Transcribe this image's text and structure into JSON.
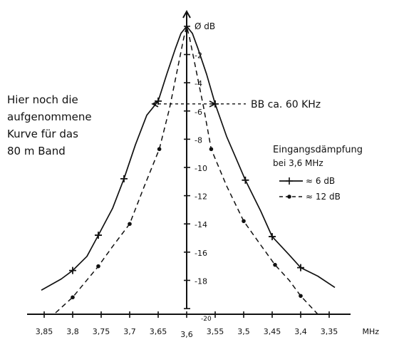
{
  "chart_data": {
    "type": "line",
    "x_unit": "MHz",
    "y_unit": "dB",
    "x_ticks": [
      {
        "value": 3.85,
        "label": "3,85"
      },
      {
        "value": 3.8,
        "label": "3,8"
      },
      {
        "value": 3.75,
        "label": "3,75"
      },
      {
        "value": 3.7,
        "label": "3,7"
      },
      {
        "value": 3.65,
        "label": "3,65"
      },
      {
        "value": 3.6,
        "label": "3,6"
      },
      {
        "value": 3.55,
        "label": "3,55"
      },
      {
        "value": 3.5,
        "label": "3,5"
      },
      {
        "value": 3.45,
        "label": "3,45"
      },
      {
        "value": 3.4,
        "label": "3,4"
      },
      {
        "value": 3.35,
        "label": "3,35"
      }
    ],
    "y_ticks": [
      {
        "value": 0,
        "label": "0"
      },
      {
        "value": -2,
        "label": "-2"
      },
      {
        "value": -4,
        "label": "-4"
      },
      {
        "value": -6,
        "label": "-6"
      },
      {
        "value": -8,
        "label": "-8"
      },
      {
        "value": -10,
        "label": "-10"
      },
      {
        "value": -12,
        "label": "-12"
      },
      {
        "value": -14,
        "label": "-14"
      },
      {
        "value": -16,
        "label": "-16"
      },
      {
        "value": -18,
        "label": "-18"
      },
      {
        "value": -20,
        "label": "-20"
      }
    ],
    "y_zero_label": "Ø dB",
    "x_reversed": true,
    "xlim": [
      3.87,
      3.33
    ],
    "ylim": [
      -20.5,
      0.5
    ],
    "series": [
      {
        "name": "≈ 6 dB",
        "style": "solid",
        "marker": "cross",
        "x": [
          3.65,
          3.71,
          3.755,
          3.8,
          3.55,
          3.497,
          3.45,
          3.4
        ],
        "y": [
          -5.3,
          -10.8,
          -14.8,
          -17.3,
          -5.5,
          -10.9,
          -14.9,
          -17.1
        ]
      },
      {
        "name": "≈ 12 dB",
        "style": "dashed",
        "marker": "circle",
        "x": [
          3.648,
          3.7,
          3.755,
          3.8,
          3.557,
          3.5,
          3.445,
          3.4
        ],
        "y": [
          -8.7,
          -14.0,
          -17.0,
          -19.2,
          -8.7,
          -13.8,
          -16.9,
          -19.1
        ]
      }
    ],
    "curve_shape": {
      "solid": [
        [
          3.855,
          -18.7
        ],
        [
          3.82,
          -17.9
        ],
        [
          3.8,
          -17.3
        ],
        [
          3.775,
          -16.3
        ],
        [
          3.755,
          -14.8
        ],
        [
          3.73,
          -12.9
        ],
        [
          3.71,
          -10.8
        ],
        [
          3.69,
          -8.4
        ],
        [
          3.67,
          -6.3
        ],
        [
          3.65,
          -5.3
        ],
        [
          3.635,
          -3.4
        ],
        [
          3.62,
          -1.6
        ],
        [
          3.61,
          -0.5
        ],
        [
          3.6,
          0
        ],
        [
          3.59,
          -0.5
        ],
        [
          3.58,
          -1.6
        ],
        [
          3.565,
          -3.4
        ],
        [
          3.55,
          -5.5
        ],
        [
          3.53,
          -7.8
        ],
        [
          3.515,
          -9.2
        ],
        [
          3.497,
          -10.9
        ],
        [
          3.47,
          -13.1
        ],
        [
          3.45,
          -14.9
        ],
        [
          3.42,
          -16.2
        ],
        [
          3.4,
          -17.1
        ],
        [
          3.37,
          -17.7
        ],
        [
          3.34,
          -18.5
        ]
      ],
      "dashed": [
        [
          3.83,
          -20.3
        ],
        [
          3.8,
          -19.2
        ],
        [
          3.755,
          -17.0
        ],
        [
          3.73,
          -15.6
        ],
        [
          3.7,
          -14.0
        ],
        [
          3.675,
          -11.4
        ],
        [
          3.648,
          -8.7
        ],
        [
          3.63,
          -5.8
        ],
        [
          3.615,
          -2.8
        ],
        [
          3.605,
          -0.8
        ],
        [
          3.6,
          0
        ],
        [
          3.595,
          -0.8
        ],
        [
          3.585,
          -2.8
        ],
        [
          3.57,
          -5.8
        ],
        [
          3.557,
          -8.7
        ],
        [
          3.53,
          -11.3
        ],
        [
          3.5,
          -13.8
        ],
        [
          3.47,
          -15.5
        ],
        [
          3.445,
          -16.9
        ],
        [
          3.42,
          -18.0
        ],
        [
          3.4,
          -19.1
        ],
        [
          3.37,
          -20.4
        ]
      ]
    },
    "annotations": {
      "bandwidth": "BB ca. 60 KHz",
      "note": [
        "Hier noch die",
        "aufgenommene",
        "Kurve für das",
        "80 m Band"
      ],
      "legend_title": [
        "Eingangsdämpfung",
        "bei 3,6 MHz"
      ]
    },
    "legend_placement": "right",
    "grid": false
  }
}
